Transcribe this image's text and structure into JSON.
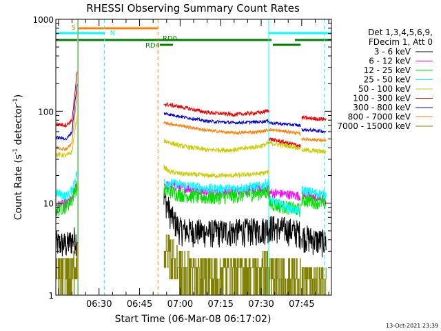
{
  "chart_data": {
    "type": "line",
    "title": "RHESSI Observing Summary Count Rates",
    "xlabel": "Start Time (06-Mar-08 06:17:02)",
    "ylabel_main": "Count Rate (s",
    "ylabel_sup1": "-1",
    "ylabel_mid": " detector",
    "ylabel_sup2": "-1",
    "ylabel_end": ")",
    "yscale": "log",
    "ylim": [
      1,
      1000
    ],
    "xlim_minutes": [
      374,
      476
    ],
    "x_tick_minutes": [
      390,
      405,
      420,
      435,
      450,
      465
    ],
    "x_tick_labels": [
      "06:30",
      "06:45",
      "07:00",
      "07:15",
      "07:30",
      "07:45"
    ],
    "y_ticks": [
      1,
      10,
      100,
      1000
    ],
    "y_tick_labels": [
      "1",
      "10",
      "100",
      "1000"
    ],
    "timestamp": "13-Oct-2021 23:39",
    "legend": {
      "header1": "Det 1,3,4,5,6,9,",
      "header2": "FDecim 1, Att 0",
      "entries": [
        {
          "label": "3 - 6 keV",
          "color": "#000000"
        },
        {
          "label": "6 - 12 keV",
          "color": "#ff00ff"
        },
        {
          "label": "12 - 25 keV",
          "color": "#00e000"
        },
        {
          "label": "25 - 50 keV",
          "color": "#00ffff"
        },
        {
          "label": "50 - 100 keV",
          "color": "#cccc00"
        },
        {
          "label": "100 - 300 keV",
          "color": "#ee0000"
        },
        {
          "label": "300 - 800 keV",
          "color": "#0000dd"
        },
        {
          "label": "800 - 7000 keV",
          "color": "#ff8000"
        },
        {
          "label": "7000 - 15000 keV",
          "color": "#808000"
        }
      ]
    },
    "flags": [
      {
        "label": "S",
        "color": "#ff8000",
        "start": 382.3,
        "end": 411.8,
        "level": 1
      },
      {
        "label": "N",
        "color": "#00ffff",
        "start": 374.0,
        "end": 392.0,
        "level": 2,
        "start2": 452.8,
        "end2": 476.0
      },
      {
        "label": "RD0",
        "color": "#008000",
        "start": 374.0,
        "end": 453.8,
        "level": 3,
        "start2": 462.5,
        "end2": 476.0
      },
      {
        "label": "RD4",
        "color": "#008000",
        "start": 412.5,
        "end": 417.3,
        "level": 4,
        "start2": 454.3,
        "end2": 464.6
      }
    ],
    "vertical_markers": [
      {
        "minute": 382.0,
        "style": "solid",
        "color": "#00ffff"
      },
      {
        "minute": 382.3,
        "style": "solid",
        "color": "#ff8000"
      },
      {
        "minute": 392.0,
        "style": "dashed",
        "color": "#00ffff"
      },
      {
        "minute": 411.8,
        "style": "dashed",
        "color": "#ff8000"
      },
      {
        "minute": 452.8,
        "style": "solid",
        "color": "#00ffff"
      },
      {
        "minute": 473.3,
        "style": "dashed",
        "color": "#00ffff"
      }
    ],
    "series": [
      {
        "name": "3 - 6 keV",
        "color": "#000000",
        "noise": 0.35,
        "segments": [
          [
            [
              374.0,
              3.7
            ],
            [
              378.0,
              3.6
            ],
            [
              381.0,
              4.2
            ],
            [
              382.0,
              4.0
            ]
          ],
          [
            [
              414.0,
              12
            ],
            [
              417.0,
              7
            ],
            [
              420.0,
              5.2
            ],
            [
              430.0,
              4.9
            ],
            [
              440.0,
              5.0
            ],
            [
              450.0,
              5.2
            ],
            [
              453.0,
              5.6
            ]
          ],
          [
            [
              453.0,
              5.6
            ],
            [
              460.0,
              5.2
            ],
            [
              464.6,
              4.8
            ]
          ],
          [
            [
              465.0,
              4.5
            ],
            [
              470.0,
              4.0
            ],
            [
              474.0,
              3.8
            ]
          ]
        ]
      },
      {
        "name": "6 - 12 keV",
        "color": "#ff00ff",
        "noise": 0.12,
        "segments": [
          [
            [
              374.0,
              9.5
            ],
            [
              378.0,
              10
            ],
            [
              380.0,
              11
            ],
            [
              381.0,
              14
            ],
            [
              382.0,
              16
            ]
          ],
          [
            [
              414.0,
              16
            ],
            [
              420.0,
              15
            ],
            [
              430.0,
              13.5
            ],
            [
              440.0,
              13.5
            ],
            [
              450.0,
              14.5
            ],
            [
              453.0,
              15.0
            ]
          ],
          [
            [
              453.0,
              13
            ],
            [
              460.0,
              12.5
            ],
            [
              464.6,
              12.0
            ]
          ],
          [
            [
              465.0,
              12.5
            ],
            [
              470.0,
              11.5
            ],
            [
              474.0,
              11.0
            ]
          ]
        ]
      },
      {
        "name": "12 - 25 keV",
        "color": "#00e000",
        "noise": 0.18,
        "segments": [
          [
            [
              374.0,
              8.5
            ],
            [
              378.0,
              9.5
            ],
            [
              380.0,
              11
            ],
            [
              381.0,
              14
            ],
            [
              382.0,
              15
            ]
          ],
          [
            [
              414.0,
              14
            ],
            [
              420.0,
              12.5
            ],
            [
              430.0,
              11.5
            ],
            [
              440.0,
              12
            ],
            [
              450.0,
              13
            ],
            [
              453.0,
              13.5
            ]
          ],
          [
            [
              453.0,
              10
            ],
            [
              460.0,
              9
            ],
            [
              464.6,
              8.5
            ]
          ],
          [
            [
              465.0,
              11
            ],
            [
              470.0,
              10.5
            ],
            [
              474.0,
              10
            ]
          ]
        ]
      },
      {
        "name": "25 - 50 keV",
        "color": "#00ffff",
        "noise": 0.12,
        "segments": [
          [
            [
              374.0,
              13
            ],
            [
              378.0,
              12
            ],
            [
              380.0,
              14
            ],
            [
              381.0,
              18
            ],
            [
              382.0,
              22
            ]
          ],
          [
            [
              414.0,
              17
            ],
            [
              420.0,
              16
            ],
            [
              430.0,
              14.5
            ],
            [
              440.0,
              14.5
            ],
            [
              450.0,
              15.5
            ],
            [
              453.0,
              17
            ]
          ],
          [
            [
              453.0,
              11
            ],
            [
              458.0,
              9.5
            ],
            [
              464.6,
              8.0
            ]
          ],
          [
            [
              465.0,
              14
            ],
            [
              470.0,
              13
            ],
            [
              474.0,
              12.5
            ]
          ]
        ]
      },
      {
        "name": "50 - 100 keV",
        "color": "#cccc00",
        "noise": 0.06,
        "segments": [
          [
            [
              374.0,
              34
            ],
            [
              378.0,
              33
            ],
            [
              380.0,
              36
            ],
            [
              381.0,
              60
            ],
            [
              382.0,
              90
            ]
          ],
          [
            [
              414.0,
              25
            ],
            [
              416.0,
              22
            ],
            [
              420.0,
              21
            ],
            [
              430.0,
              20
            ],
            [
              440.0,
              20
            ],
            [
              450.0,
              21
            ],
            [
              453.0,
              22
            ]
          ],
          [
            [
              414.0,
              48
            ],
            [
              420.0,
              42
            ],
            [
              430.0,
              38
            ],
            [
              440.0,
              38
            ],
            [
              450.0,
              42
            ],
            [
              453.0,
              45
            ]
          ],
          [
            [
              453.0,
              45
            ],
            [
              460.0,
              42
            ],
            [
              464.6,
              40
            ]
          ],
          [
            [
              465.0,
              38
            ],
            [
              470.0,
              37
            ],
            [
              474.0,
              36
            ]
          ]
        ]
      },
      {
        "name": "100 - 300 keV",
        "color": "#ee0000",
        "noise": 0.05,
        "segments": [
          [
            [
              374.0,
              72
            ],
            [
              378.0,
              71
            ],
            [
              380.0,
              80
            ],
            [
              381.0,
              150
            ],
            [
              382.0,
              280
            ]
          ],
          [
            [
              414.0,
              120
            ],
            [
              420.0,
              112
            ],
            [
              430.0,
              97
            ],
            [
              440.0,
              92
            ],
            [
              450.0,
              97
            ],
            [
              453.0,
              102
            ]
          ],
          [
            [
              453.0,
              50
            ],
            [
              460.0,
              45
            ],
            [
              464.6,
              42
            ]
          ],
          [
            [
              465.0,
              85
            ],
            [
              470.0,
              83
            ],
            [
              474.0,
              82
            ]
          ]
        ]
      },
      {
        "name": "300 - 800 keV",
        "color": "#0000dd",
        "noise": 0.04,
        "segments": [
          [
            [
              374.0,
              52
            ],
            [
              378.0,
              50
            ],
            [
              380.0,
              60
            ],
            [
              381.0,
              120
            ],
            [
              382.0,
              200
            ]
          ],
          [
            [
              414.0,
              95
            ],
            [
              420.0,
              88
            ],
            [
              430.0,
              78
            ],
            [
              440.0,
              75
            ],
            [
              450.0,
              77
            ],
            [
              453.0,
              79
            ]
          ],
          [
            [
              453.0,
              75
            ],
            [
              460.0,
              72
            ],
            [
              464.6,
              70
            ]
          ],
          [
            [
              465.0,
              63
            ],
            [
              470.0,
              62
            ],
            [
              474.0,
              60
            ]
          ]
        ]
      },
      {
        "name": "800 - 7000 keV",
        "color": "#ff8000",
        "noise": 0.04,
        "segments": [
          [
            [
              374.0,
              40
            ],
            [
              378.0,
              39
            ],
            [
              380.0,
              45
            ],
            [
              381.0,
              90
            ],
            [
              382.0,
              170
            ]
          ],
          [
            [
              414.0,
              75
            ],
            [
              420.0,
              70
            ],
            [
              430.0,
              62
            ],
            [
              440.0,
              58
            ],
            [
              450.0,
              60
            ],
            [
              453.0,
              63
            ]
          ],
          [
            [
              453.0,
              63
            ],
            [
              460.0,
              60
            ],
            [
              464.6,
              57
            ]
          ],
          [
            [
              465.0,
              50
            ],
            [
              470.0,
              49
            ],
            [
              474.0,
              48
            ]
          ]
        ]
      },
      {
        "name": "7000 - 15000 keV",
        "color": "#808000",
        "noise": 0.0,
        "step": true,
        "segments": [
          [
            [
              374.0,
              1.5
            ],
            [
              378.0,
              1.5
            ],
            [
              380.0,
              1.6
            ],
            [
              381.0,
              2.1
            ],
            [
              382.0,
              2.4
            ]
          ],
          [
            [
              414.0,
              3.2
            ],
            [
              418.0,
              2.5
            ],
            [
              420.0,
              1.9
            ],
            [
              430.0,
              1.7
            ],
            [
              440.0,
              1.8
            ],
            [
              450.0,
              1.8
            ],
            [
              453.0,
              2.0
            ]
          ],
          [
            [
              453.0,
              1.7
            ],
            [
              460.0,
              1.6
            ],
            [
              464.6,
              1.5
            ]
          ],
          [
            [
              465.0,
              1.4
            ],
            [
              470.0,
              1.4
            ],
            [
              474.0,
              1.4
            ]
          ]
        ]
      }
    ]
  }
}
